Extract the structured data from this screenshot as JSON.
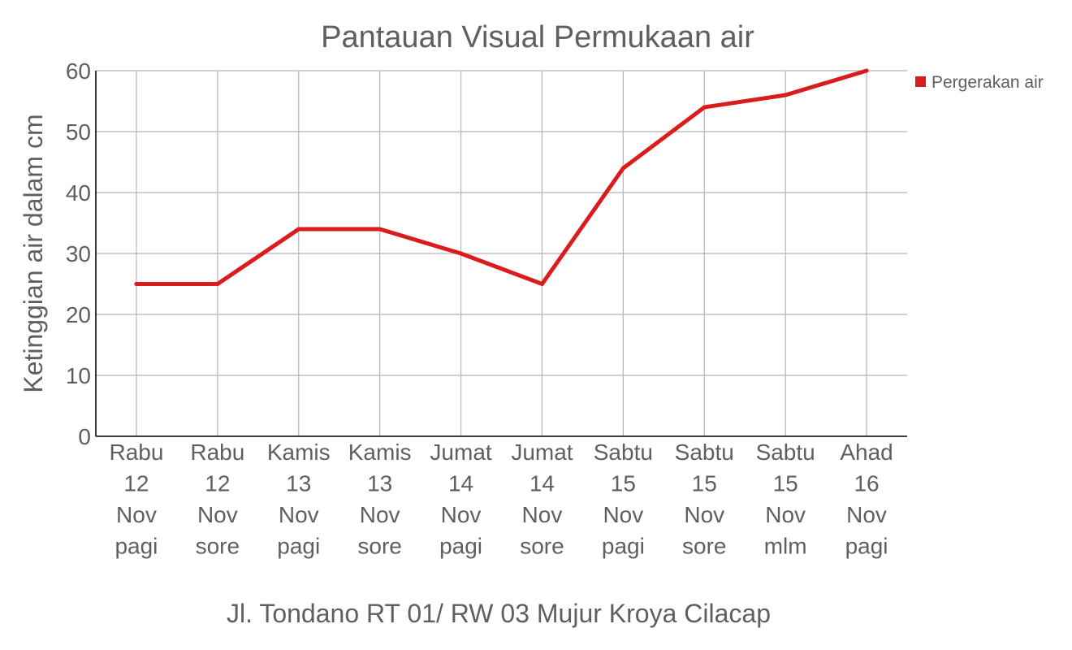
{
  "chart_data": {
    "type": "line",
    "title": "Pantauan Visual Permukaan air",
    "xlabel": "Jl. Tondano RT 01/ RW 03 Mujur Kroya Cilacap",
    "ylabel": "Ketinggian air dalam cm",
    "ylim": [
      0,
      60
    ],
    "yticks": [
      "0",
      "10",
      "20",
      "30",
      "40",
      "50",
      "60"
    ],
    "grid": true,
    "legend_position": "top-right",
    "categories": [
      [
        "Rabu",
        "12",
        "Nov",
        "pagi"
      ],
      [
        "Rabu",
        "12",
        "Nov",
        "sore"
      ],
      [
        "Kamis",
        "13",
        "Nov",
        "pagi"
      ],
      [
        "Kamis",
        "13",
        "Nov",
        "sore"
      ],
      [
        "Jumat",
        "14",
        "Nov",
        "pagi"
      ],
      [
        "Jumat",
        "14",
        "Nov",
        "sore"
      ],
      [
        "Sabtu",
        "15",
        "Nov",
        "pagi"
      ],
      [
        "Sabtu",
        "15",
        "Nov",
        "sore"
      ],
      [
        "Sabtu",
        "15",
        "Nov",
        "mlm"
      ],
      [
        "Ahad",
        "16",
        "Nov",
        "pagi"
      ]
    ],
    "series": [
      {
        "name": "Pergerakan air",
        "color": "#db1c1c",
        "values": [
          25,
          25,
          34,
          34,
          30,
          25,
          44,
          54,
          56,
          60
        ]
      }
    ]
  }
}
